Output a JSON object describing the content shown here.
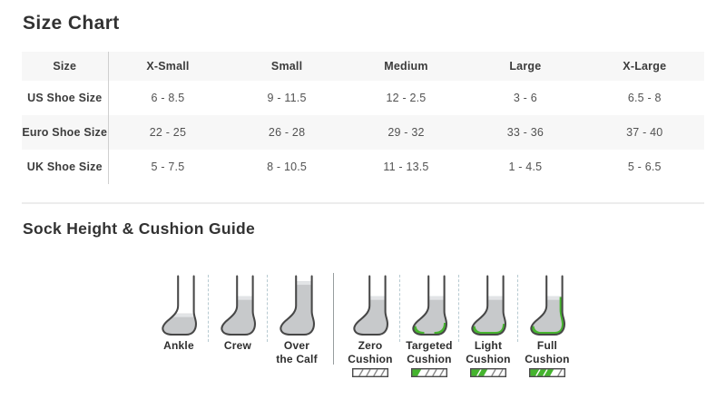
{
  "size_chart": {
    "title": "Size Chart",
    "columns": [
      "Size",
      "X-Small",
      "Small",
      "Medium",
      "Large",
      "X-Large"
    ],
    "rows": [
      {
        "label": "US Shoe Size",
        "values": [
          "6 - 8.5",
          "9 - 11.5",
          "12 - 2.5",
          "3 - 6",
          "6.5 - 8"
        ]
      },
      {
        "label": "Euro Shoe Size",
        "values": [
          "22 - 25",
          "26 - 28",
          "29 - 32",
          "33 - 36",
          "37 - 40"
        ]
      },
      {
        "label": "UK Shoe Size",
        "values": [
          "5 - 7.5",
          "8 - 10.5",
          "11 - 13.5",
          "1 - 4.5",
          "5 - 6.5"
        ]
      }
    ]
  },
  "guide": {
    "title": "Sock Height & Cushion Guide",
    "heights": [
      {
        "label": "Ankle",
        "icon": "ankle-sock-icon",
        "sock_top": "ankle"
      },
      {
        "label": "Crew",
        "icon": "crew-sock-icon",
        "sock_top": "crew"
      },
      {
        "label": "Over\nthe Calf",
        "icon": "over-the-calf-sock-icon",
        "sock_top": "overcalf"
      }
    ],
    "cushions": [
      {
        "label": "Zero\nCushion",
        "icon": "zero-cushion-sock-icon",
        "cushion_zones": [],
        "bar_level": 0
      },
      {
        "label": "Targeted\nCushion",
        "icon": "targeted-cushion-sock-icon",
        "cushion_zones": [
          "toe",
          "heel"
        ],
        "bar_level": 1
      },
      {
        "label": "Light\nCushion",
        "icon": "light-cushion-sock-icon",
        "cushion_zones": [
          "sole"
        ],
        "bar_level": 2
      },
      {
        "label": "Full\nCushion",
        "icon": "full-cushion-sock-icon",
        "cushion_zones": [
          "sole",
          "back"
        ],
        "bar_level": 3
      }
    ],
    "colors": {
      "cushion_green": "#45b42e",
      "sock_gray": "#c7c9cb",
      "sock_cuff": "#e2e4e6",
      "outline": "#474747"
    }
  }
}
